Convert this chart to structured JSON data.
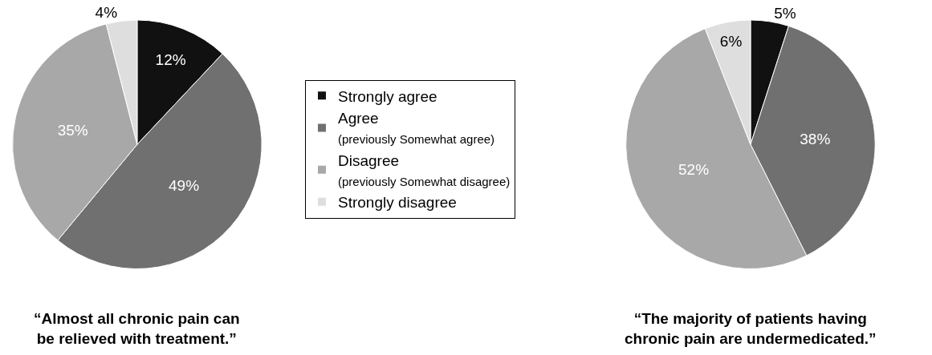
{
  "chart_data": [
    {
      "type": "pie",
      "title": "“Almost all chronic pain can\nbe relieved with treatment.”",
      "categories": [
        "Strongly agree",
        "Agree\n(previously Somewhat agree)",
        "Disagree\n(previously Somewhat disagree)",
        "Strongly disagree"
      ],
      "values": [
        12,
        49,
        35,
        4
      ],
      "value_labels": [
        "12%",
        "49%",
        "35%",
        "4%"
      ],
      "colors": [
        "#111111",
        "#707070",
        "#a8a8a8",
        "#dedede"
      ],
      "legend": "right"
    },
    {
      "type": "pie",
      "title": "“The majority of patients having\nchronic pain are undermedicated.”",
      "categories": [
        null,
        null,
        null,
        null
      ],
      "values": [
        5,
        38,
        52,
        6
      ],
      "value_labels": [
        "5%",
        "38%",
        "52%",
        "6%"
      ],
      "colors": [
        "#111111",
        "#707070",
        "#a8a8a8",
        "#dedede"
      ]
    }
  ]
}
